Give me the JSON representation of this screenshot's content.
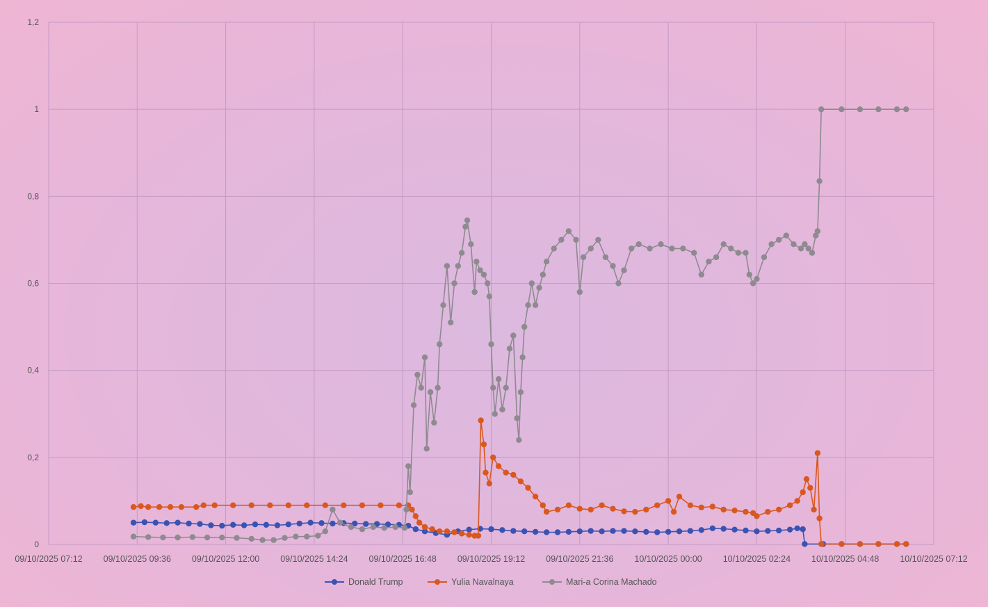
{
  "chart_data": {
    "type": "line",
    "title": "",
    "xlabel": "",
    "ylabel": "",
    "ylim": [
      0,
      1.2
    ],
    "y_ticks": [
      "0",
      "0,2",
      "0,4",
      "0,6",
      "0,8",
      "1",
      "1,2"
    ],
    "x_ticks": [
      "09/10/2025 07:12",
      "09/10/2025 09:36",
      "09/10/2025 12:00",
      "09/10/2025 14:24",
      "09/10/2025 16:48",
      "09/10/2025 19:12",
      "09/10/2025 21:36",
      "10/10/2025 00:00",
      "10/10/2025 02:24",
      "10/10/2025 04:48",
      "10/10/2025 07:12"
    ],
    "x_unit": "hours since 09/10/2025 07:12",
    "xlim": [
      0,
      24
    ],
    "grid": true,
    "legend_position": "bottom",
    "series": [
      {
        "name": "Donald Trump",
        "color": "#3a53b3",
        "points": [
          [
            2.3,
            0.05
          ],
          [
            2.6,
            0.051
          ],
          [
            2.9,
            0.05
          ],
          [
            3.2,
            0.049
          ],
          [
            3.5,
            0.05
          ],
          [
            3.8,
            0.048
          ],
          [
            4.1,
            0.047
          ],
          [
            4.4,
            0.044
          ],
          [
            4.7,
            0.043
          ],
          [
            5.0,
            0.045
          ],
          [
            5.3,
            0.044
          ],
          [
            5.6,
            0.046
          ],
          [
            5.9,
            0.045
          ],
          [
            6.2,
            0.044
          ],
          [
            6.5,
            0.046
          ],
          [
            6.8,
            0.048
          ],
          [
            7.1,
            0.05
          ],
          [
            7.4,
            0.049
          ],
          [
            7.7,
            0.048
          ],
          [
            8.0,
            0.049
          ],
          [
            8.3,
            0.048
          ],
          [
            8.6,
            0.047
          ],
          [
            8.9,
            0.047
          ],
          [
            9.2,
            0.046
          ],
          [
            9.5,
            0.045
          ],
          [
            9.75,
            0.043
          ],
          [
            9.95,
            0.035
          ],
          [
            10.2,
            0.03
          ],
          [
            10.5,
            0.026
          ],
          [
            10.8,
            0.022
          ],
          [
            11.1,
            0.03
          ],
          [
            11.4,
            0.034
          ],
          [
            11.7,
            0.036
          ],
          [
            12.0,
            0.035
          ],
          [
            12.3,
            0.033
          ],
          [
            12.6,
            0.031
          ],
          [
            12.9,
            0.03
          ],
          [
            13.2,
            0.029
          ],
          [
            13.5,
            0.028
          ],
          [
            13.8,
            0.028
          ],
          [
            14.1,
            0.029
          ],
          [
            14.4,
            0.03
          ],
          [
            14.7,
            0.031
          ],
          [
            15.0,
            0.03
          ],
          [
            15.3,
            0.031
          ],
          [
            15.6,
            0.031
          ],
          [
            15.9,
            0.03
          ],
          [
            16.2,
            0.029
          ],
          [
            16.5,
            0.028
          ],
          [
            16.8,
            0.029
          ],
          [
            17.1,
            0.03
          ],
          [
            17.4,
            0.031
          ],
          [
            17.7,
            0.033
          ],
          [
            18.0,
            0.037
          ],
          [
            18.3,
            0.036
          ],
          [
            18.6,
            0.034
          ],
          [
            18.9,
            0.032
          ],
          [
            19.2,
            0.03
          ],
          [
            19.5,
            0.031
          ],
          [
            19.8,
            0.032
          ],
          [
            20.1,
            0.034
          ],
          [
            20.3,
            0.037
          ],
          [
            20.45,
            0.035
          ],
          [
            20.5,
            0.001
          ],
          [
            21.0,
            0.001
          ],
          [
            21.5,
            0.001
          ],
          [
            22.0,
            0.001
          ],
          [
            22.5,
            0.001
          ],
          [
            23.0,
            0.001
          ],
          [
            23.25,
            0.001
          ]
        ]
      },
      {
        "name": "Yulia Navalnaya",
        "color": "#d9581f",
        "points": [
          [
            2.3,
            0.086
          ],
          [
            2.5,
            0.088
          ],
          [
            2.7,
            0.086
          ],
          [
            3.0,
            0.086
          ],
          [
            3.3,
            0.086
          ],
          [
            3.6,
            0.086
          ],
          [
            4.0,
            0.086
          ],
          [
            4.2,
            0.09
          ],
          [
            4.5,
            0.09
          ],
          [
            5.0,
            0.09
          ],
          [
            5.5,
            0.09
          ],
          [
            6.0,
            0.09
          ],
          [
            6.5,
            0.09
          ],
          [
            7.0,
            0.09
          ],
          [
            7.5,
            0.09
          ],
          [
            8.0,
            0.09
          ],
          [
            8.5,
            0.09
          ],
          [
            9.0,
            0.09
          ],
          [
            9.5,
            0.09
          ],
          [
            9.75,
            0.09
          ],
          [
            9.85,
            0.08
          ],
          [
            9.95,
            0.065
          ],
          [
            10.05,
            0.05
          ],
          [
            10.2,
            0.04
          ],
          [
            10.4,
            0.035
          ],
          [
            10.6,
            0.03
          ],
          [
            10.8,
            0.03
          ],
          [
            11.0,
            0.028
          ],
          [
            11.2,
            0.025
          ],
          [
            11.4,
            0.022
          ],
          [
            11.55,
            0.02
          ],
          [
            11.65,
            0.02
          ],
          [
            11.72,
            0.285
          ],
          [
            11.8,
            0.23
          ],
          [
            11.85,
            0.165
          ],
          [
            11.95,
            0.14
          ],
          [
            12.05,
            0.2
          ],
          [
            12.2,
            0.18
          ],
          [
            12.4,
            0.165
          ],
          [
            12.6,
            0.16
          ],
          [
            12.8,
            0.145
          ],
          [
            13.0,
            0.13
          ],
          [
            13.2,
            0.11
          ],
          [
            13.4,
            0.09
          ],
          [
            13.5,
            0.075
          ],
          [
            13.8,
            0.08
          ],
          [
            14.1,
            0.09
          ],
          [
            14.4,
            0.082
          ],
          [
            14.7,
            0.08
          ],
          [
            15.0,
            0.09
          ],
          [
            15.3,
            0.082
          ],
          [
            15.6,
            0.076
          ],
          [
            15.9,
            0.075
          ],
          [
            16.2,
            0.08
          ],
          [
            16.5,
            0.09
          ],
          [
            16.8,
            0.1
          ],
          [
            16.95,
            0.075
          ],
          [
            17.1,
            0.11
          ],
          [
            17.4,
            0.09
          ],
          [
            17.7,
            0.085
          ],
          [
            18.0,
            0.087
          ],
          [
            18.3,
            0.08
          ],
          [
            18.6,
            0.078
          ],
          [
            18.9,
            0.075
          ],
          [
            19.1,
            0.072
          ],
          [
            19.2,
            0.065
          ],
          [
            19.5,
            0.075
          ],
          [
            19.8,
            0.08
          ],
          [
            20.1,
            0.09
          ],
          [
            20.3,
            0.1
          ],
          [
            20.45,
            0.12
          ],
          [
            20.55,
            0.15
          ],
          [
            20.65,
            0.13
          ],
          [
            20.75,
            0.08
          ],
          [
            20.85,
            0.21
          ],
          [
            20.9,
            0.06
          ],
          [
            20.95,
            0.001
          ],
          [
            21.5,
            0.001
          ],
          [
            22.0,
            0.001
          ],
          [
            22.5,
            0.001
          ],
          [
            23.0,
            0.001
          ],
          [
            23.25,
            0.001
          ]
        ]
      },
      {
        "name": "Mari-a Corina Machado",
        "color": "#8e8a90",
        "points": [
          [
            2.3,
            0.018
          ],
          [
            2.7,
            0.017
          ],
          [
            3.1,
            0.016
          ],
          [
            3.5,
            0.016
          ],
          [
            3.9,
            0.017
          ],
          [
            4.3,
            0.016
          ],
          [
            4.7,
            0.016
          ],
          [
            5.1,
            0.015
          ],
          [
            5.5,
            0.013
          ],
          [
            5.8,
            0.01
          ],
          [
            6.1,
            0.01
          ],
          [
            6.4,
            0.015
          ],
          [
            6.7,
            0.018
          ],
          [
            7.0,
            0.018
          ],
          [
            7.3,
            0.02
          ],
          [
            7.5,
            0.03
          ],
          [
            7.7,
            0.08
          ],
          [
            7.9,
            0.05
          ],
          [
            8.2,
            0.04
          ],
          [
            8.5,
            0.035
          ],
          [
            8.8,
            0.04
          ],
          [
            9.1,
            0.038
          ],
          [
            9.4,
            0.04
          ],
          [
            9.65,
            0.038
          ],
          [
            9.7,
            0.08
          ],
          [
            9.75,
            0.18
          ],
          [
            9.8,
            0.12
          ],
          [
            9.9,
            0.32
          ],
          [
            10.0,
            0.39
          ],
          [
            10.1,
            0.36
          ],
          [
            10.2,
            0.43
          ],
          [
            10.25,
            0.22
          ],
          [
            10.35,
            0.35
          ],
          [
            10.45,
            0.28
          ],
          [
            10.55,
            0.36
          ],
          [
            10.6,
            0.46
          ],
          [
            10.7,
            0.55
          ],
          [
            10.8,
            0.64
          ],
          [
            10.9,
            0.51
          ],
          [
            11.0,
            0.6
          ],
          [
            11.1,
            0.64
          ],
          [
            11.2,
            0.67
          ],
          [
            11.3,
            0.73
          ],
          [
            11.35,
            0.745
          ],
          [
            11.45,
            0.69
          ],
          [
            11.55,
            0.58
          ],
          [
            11.6,
            0.65
          ],
          [
            11.7,
            0.63
          ],
          [
            11.8,
            0.62
          ],
          [
            11.9,
            0.6
          ],
          [
            11.95,
            0.57
          ],
          [
            12.0,
            0.46
          ],
          [
            12.05,
            0.36
          ],
          [
            12.1,
            0.3
          ],
          [
            12.2,
            0.38
          ],
          [
            12.3,
            0.31
          ],
          [
            12.4,
            0.36
          ],
          [
            12.5,
            0.45
          ],
          [
            12.6,
            0.48
          ],
          [
            12.7,
            0.29
          ],
          [
            12.75,
            0.24
          ],
          [
            12.8,
            0.35
          ],
          [
            12.85,
            0.43
          ],
          [
            12.9,
            0.5
          ],
          [
            13.0,
            0.55
          ],
          [
            13.1,
            0.6
          ],
          [
            13.2,
            0.55
          ],
          [
            13.3,
            0.59
          ],
          [
            13.4,
            0.62
          ],
          [
            13.5,
            0.65
          ],
          [
            13.7,
            0.68
          ],
          [
            13.9,
            0.7
          ],
          [
            14.1,
            0.72
          ],
          [
            14.3,
            0.7
          ],
          [
            14.4,
            0.58
          ],
          [
            14.5,
            0.66
          ],
          [
            14.7,
            0.68
          ],
          [
            14.9,
            0.7
          ],
          [
            15.1,
            0.66
          ],
          [
            15.3,
            0.64
          ],
          [
            15.45,
            0.6
          ],
          [
            15.6,
            0.63
          ],
          [
            15.8,
            0.68
          ],
          [
            16.0,
            0.69
          ],
          [
            16.3,
            0.68
          ],
          [
            16.6,
            0.69
          ],
          [
            16.9,
            0.68
          ],
          [
            17.2,
            0.68
          ],
          [
            17.5,
            0.67
          ],
          [
            17.7,
            0.62
          ],
          [
            17.9,
            0.65
          ],
          [
            18.1,
            0.66
          ],
          [
            18.3,
            0.69
          ],
          [
            18.5,
            0.68
          ],
          [
            18.7,
            0.67
          ],
          [
            18.9,
            0.67
          ],
          [
            19.0,
            0.62
          ],
          [
            19.1,
            0.6
          ],
          [
            19.2,
            0.61
          ],
          [
            19.4,
            0.66
          ],
          [
            19.6,
            0.69
          ],
          [
            19.8,
            0.7
          ],
          [
            20.0,
            0.71
          ],
          [
            20.2,
            0.69
          ],
          [
            20.4,
            0.68
          ],
          [
            20.5,
            0.69
          ],
          [
            20.6,
            0.68
          ],
          [
            20.7,
            0.67
          ],
          [
            20.8,
            0.71
          ],
          [
            20.85,
            0.72
          ],
          [
            20.9,
            0.835
          ],
          [
            20.95,
            1.0
          ],
          [
            21.5,
            1.0
          ],
          [
            22.0,
            1.0
          ],
          [
            22.5,
            1.0
          ],
          [
            23.0,
            1.0
          ],
          [
            23.25,
            1.0
          ]
        ]
      }
    ]
  }
}
